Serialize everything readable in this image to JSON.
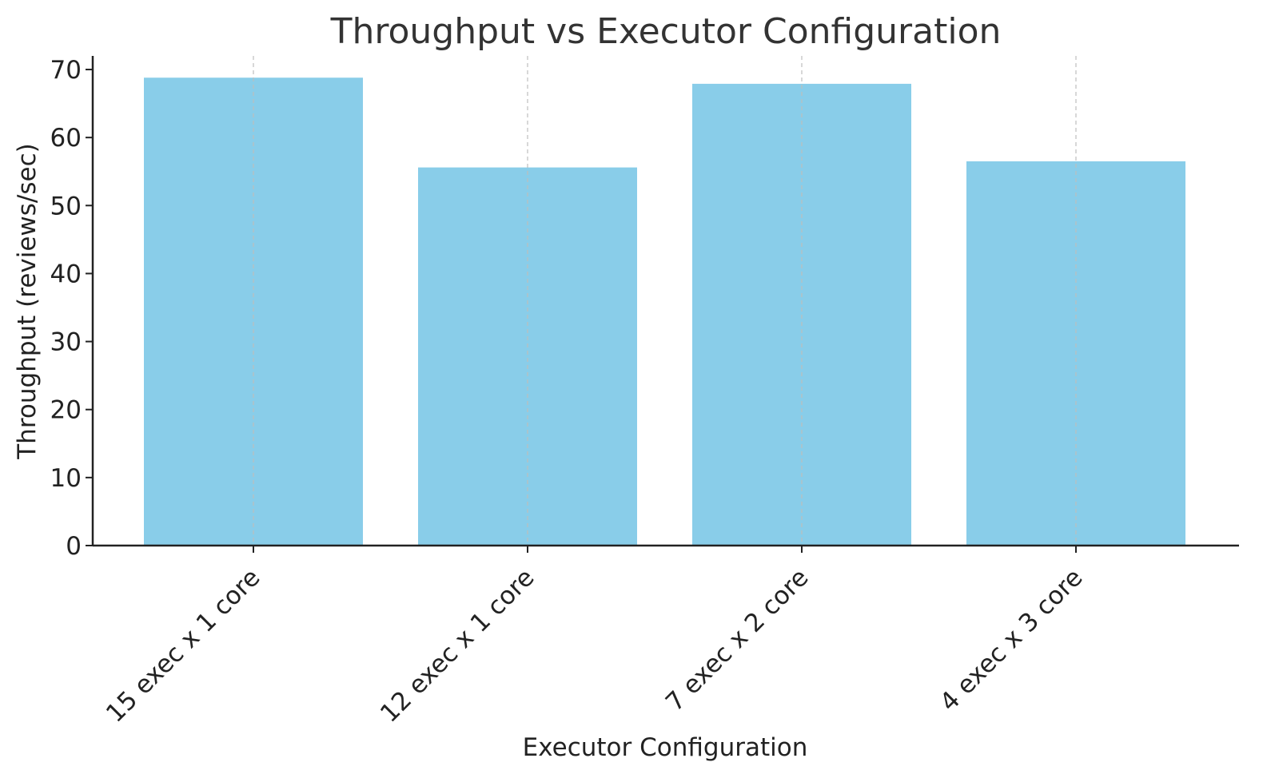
{
  "chart_data": {
    "type": "bar",
    "title": "Throughput vs Executor Configuration",
    "xlabel": "Executor Configuration",
    "ylabel": "Throughput (reviews/sec)",
    "categories": [
      "15 exec x 1 core",
      "12 exec x 1 core",
      "7 exec x 2 core",
      "4 exec x 3 core"
    ],
    "values": [
      68.8,
      55.6,
      67.9,
      56.5
    ],
    "ylim": [
      0,
      72
    ],
    "yticks": [
      0,
      10,
      20,
      30,
      40,
      50,
      60,
      70
    ],
    "grid": "x-dashed",
    "legend": "none",
    "colors": {
      "bar": "#89CDE9",
      "axis": "#222222",
      "grid": "#BDBDBD",
      "title": "#333333"
    }
  }
}
